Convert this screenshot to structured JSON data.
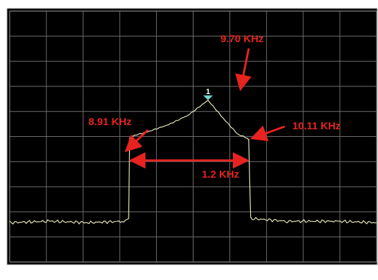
{
  "colors": {
    "background": "#000000",
    "frame": "#cfcfcf",
    "grid": "#6f6f6f",
    "trace": "#e8e8b8",
    "annotation": "#e8231f",
    "marker": "#6fd3cf",
    "marker_text": "#ffffff"
  },
  "chart_data": {
    "type": "line",
    "title": "",
    "xlabel": "",
    "ylabel": "",
    "grid": true,
    "legend": "none",
    "x_unit": "KHz",
    "grid_divisions": {
      "x": 10,
      "y": 10
    },
    "series": [
      {
        "values_shape": "noise floor with raised band between 8.91 KHz and 10.11 KHz, peak near 9.70 KHz",
        "x": [
          7.7,
          8.1,
          8.5,
          8.85,
          8.9,
          8.91,
          8.95,
          9.1,
          9.3,
          9.5,
          9.7,
          9.85,
          10.0,
          10.1,
          10.11,
          10.13,
          10.5,
          11.0,
          11.4
        ],
        "y": [
          0.0,
          0.01,
          0.0,
          0.01,
          0.02,
          0.62,
          0.64,
          0.67,
          0.72,
          0.79,
          0.9,
          0.77,
          0.65,
          0.62,
          0.61,
          0.03,
          0.01,
          0.01,
          0.0
        ]
      }
    ],
    "annotations": {
      "peak": {
        "label": "9.70 KHz",
        "x": 9.7,
        "marker_label": "1"
      },
      "left_edge": {
        "label": "8.91 KHz",
        "x": 8.91
      },
      "right_edge": {
        "label": "10.11 KHz",
        "x": 10.11
      },
      "bandwidth": {
        "label": "1.2 KHz",
        "from": 8.91,
        "to": 10.11
      }
    }
  }
}
